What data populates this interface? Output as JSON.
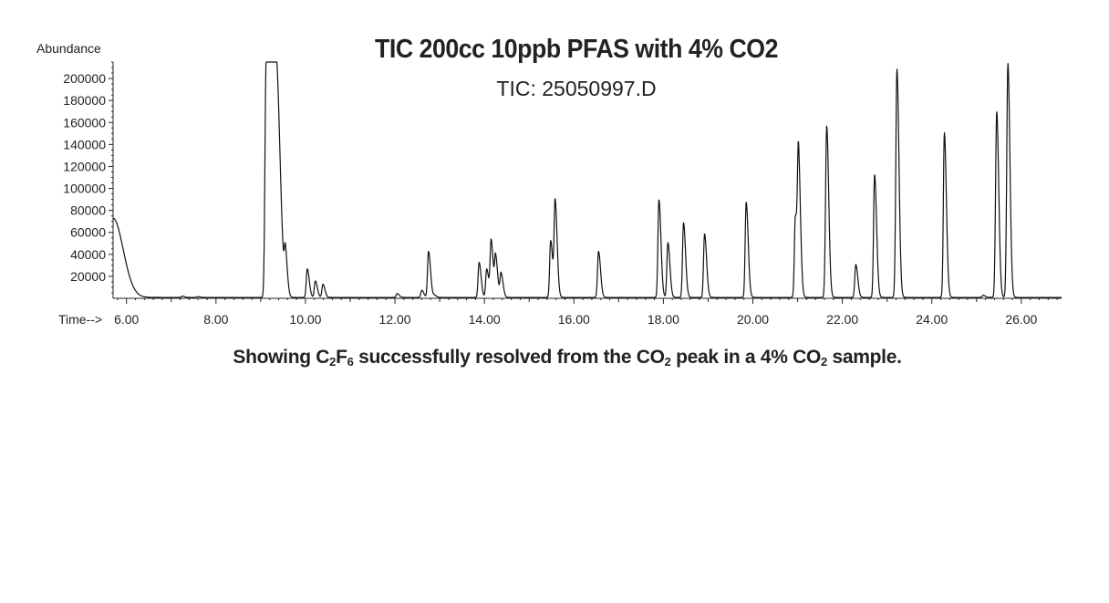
{
  "chart_data": {
    "type": "line",
    "title": "TIC 200cc 10ppb PFAS with 4% CO2",
    "subtitle": "TIC: 25050997.D",
    "ylabel": "Abundance",
    "xlabel": "Time-->",
    "xlim": [
      5.7,
      26.9
    ],
    "ylim": [
      0,
      215000
    ],
    "x_ticks": [
      6,
      8,
      10,
      12,
      14,
      16,
      18,
      20,
      22,
      24,
      26
    ],
    "x_tick_labels": [
      "6.00",
      "8.00",
      "10.00",
      "12.00",
      "14.00",
      "16.00",
      "18.00",
      "20.00",
      "22.00",
      "24.00",
      "26.00"
    ],
    "y_ticks": [
      20000,
      40000,
      60000,
      80000,
      100000,
      120000,
      140000,
      160000,
      180000,
      200000
    ],
    "y_tick_labels": [
      "20000",
      "40000",
      "60000",
      "80000",
      "100000",
      "120000",
      "140000",
      "160000",
      "180000",
      "200000"
    ],
    "baseline": 800,
    "peaks": [
      {
        "rt": 7.25,
        "height": 1200
      },
      {
        "rt": 7.6,
        "height": 700
      },
      {
        "rt": 9.12,
        "height": 215000
      },
      {
        "rt": 9.34,
        "height": 215000
      },
      {
        "rt": 9.55,
        "height": 35000
      },
      {
        "rt": 10.04,
        "height": 26000
      },
      {
        "rt": 10.22,
        "height": 15000
      },
      {
        "rt": 10.39,
        "height": 12000
      },
      {
        "rt": 12.05,
        "height": 3500
      },
      {
        "rt": 12.6,
        "height": 6500
      },
      {
        "rt": 12.75,
        "height": 42000
      },
      {
        "rt": 12.88,
        "height": 2000
      },
      {
        "rt": 13.88,
        "height": 32000
      },
      {
        "rt": 14.05,
        "height": 26000
      },
      {
        "rt": 14.15,
        "height": 51000
      },
      {
        "rt": 14.25,
        "height": 36000
      },
      {
        "rt": 14.37,
        "height": 22000
      },
      {
        "rt": 15.48,
        "height": 52000
      },
      {
        "rt": 15.58,
        "height": 86000
      },
      {
        "rt": 16.55,
        "height": 42000
      },
      {
        "rt": 17.9,
        "height": 89000
      },
      {
        "rt": 18.1,
        "height": 50000
      },
      {
        "rt": 18.45,
        "height": 68000
      },
      {
        "rt": 18.92,
        "height": 58000
      },
      {
        "rt": 19.85,
        "height": 87000
      },
      {
        "rt": 20.95,
        "height": 74000
      },
      {
        "rt": 21.02,
        "height": 120000
      },
      {
        "rt": 21.65,
        "height": 156000
      },
      {
        "rt": 22.3,
        "height": 30000
      },
      {
        "rt": 22.72,
        "height": 112000
      },
      {
        "rt": 23.22,
        "height": 208000
      },
      {
        "rt": 24.28,
        "height": 150000
      },
      {
        "rt": 25.15,
        "height": 2000
      },
      {
        "rt": 25.45,
        "height": 169000
      },
      {
        "rt": 25.7,
        "height": 213000
      }
    ],
    "grid": false,
    "legend": "none"
  },
  "caption": {
    "part1": "Showing C",
    "sub1": "2",
    "part2": "F",
    "sub2": "6",
    "part3": " successfully resolved from the CO",
    "sub3": "2",
    "part4": " peak in a 4% CO",
    "sub4": "2",
    "part5": " sample."
  },
  "colors": {
    "trace": "#111111",
    "axis": "#222222",
    "text": "#222222"
  }
}
